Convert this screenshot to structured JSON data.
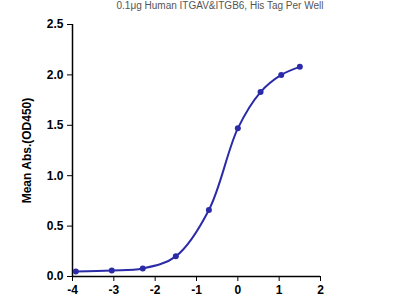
{
  "chart_data": {
    "type": "line",
    "title": "0.1μg Human ITGAV&ITGB6, His Tag Per Well",
    "y_label": "Mean Abs.(OD450)",
    "x": [
      -3.92,
      -3.05,
      -2.3,
      -1.5,
      -0.7,
      0.0,
      0.55,
      1.05,
      1.5
    ],
    "values": [
      0.05,
      0.06,
      0.08,
      0.2,
      0.66,
      1.47,
      1.83,
      2.0,
      2.08
    ],
    "color": "#2b2ba8",
    "marker": "circle",
    "line_style": "solid",
    "xlim": [
      -4,
      2
    ],
    "xticks": [
      -4,
      -3,
      -2,
      -1,
      0,
      1,
      2
    ],
    "ylim": [
      0,
      2.5
    ],
    "yticks": [
      {
        "value": 0,
        "label": "0.0"
      },
      {
        "value": 0.5,
        "label": "0.5"
      },
      {
        "value": 1,
        "label": "1.0"
      },
      {
        "value": 1.5,
        "label": "1.5"
      },
      {
        "value": 2,
        "label": "2.0"
      },
      {
        "value": 2.5,
        "label": "2.5"
      }
    ],
    "grid": false
  }
}
